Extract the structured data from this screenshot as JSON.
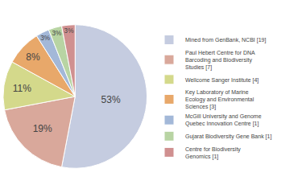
{
  "chart_data": {
    "type": "pie",
    "categories": [
      "Mined from GenBank, NCBI [19]",
      "Paul Hebert Centre for DNA\nBarcoding and Biodiversity\nStudies [7]",
      "Wellcome Sanger Institute [4]",
      "Key Laboratory of Marine\nEcology and Environmental\nSciences [3]",
      "McGill University and Genome\nQuebec Innovation Centre [1]",
      "Gujarat Biodiversity Gene Bank [1]",
      "Centre for Biodiversity\nGenomics [1]"
    ],
    "values": [
      53,
      19,
      11,
      8,
      3,
      3,
      3
    ],
    "value_labels": [
      "53%",
      "19%",
      "11%",
      "8%",
      "3%",
      "3%",
      "3%"
    ],
    "colors": [
      "#c5cce0",
      "#d9a89b",
      "#d4d98b",
      "#e8a86a",
      "#a3b8d8",
      "#b8d4a3",
      "#d09090"
    ],
    "data_labels": true,
    "legend": "right"
  }
}
